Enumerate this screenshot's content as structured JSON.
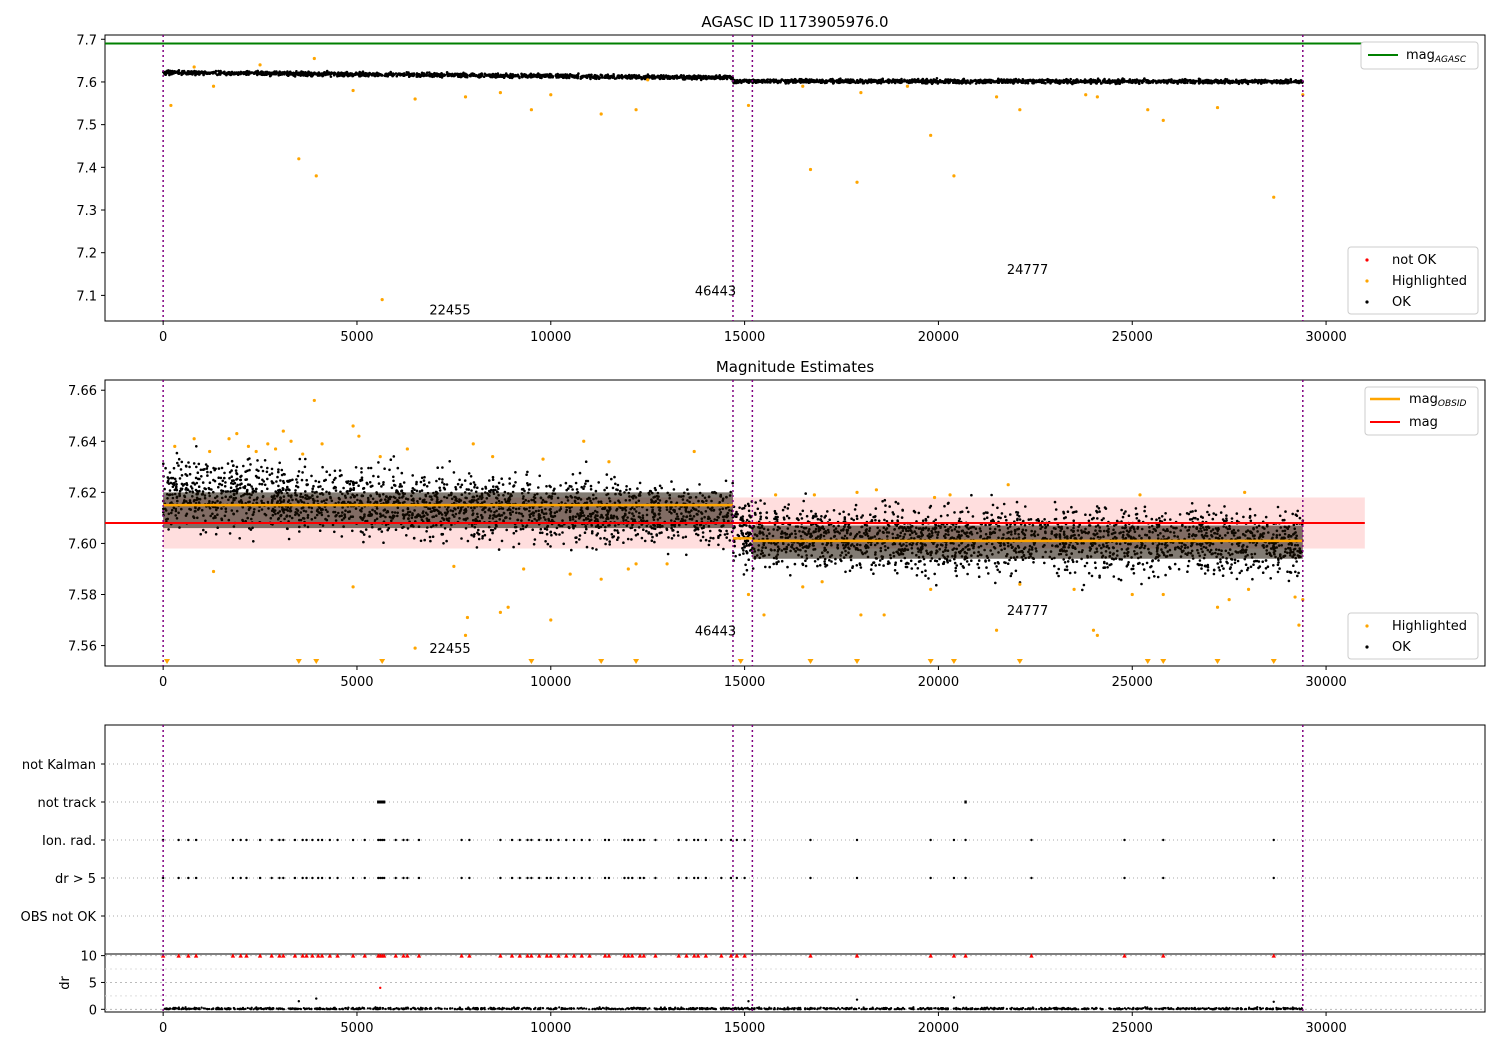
{
  "chart_data": [
    {
      "type": "scatter",
      "title": "AGASC ID 1173905976.0",
      "xlim": [
        -1500,
        34100
      ],
      "ylim": [
        7.04,
        7.71
      ],
      "xticks": [
        "0",
        "5000",
        "10000",
        "15000",
        "20000",
        "25000",
        "30000"
      ],
      "yticks": [
        "7.1",
        "7.2",
        "7.3",
        "7.4",
        "7.5",
        "7.6",
        "7.7"
      ],
      "mag_agasc": 7.69,
      "obsid_boundaries": [
        0,
        14700,
        15200,
        29400
      ],
      "obsid_labels": [
        {
          "text": "22455",
          "x": 7400,
          "y": 7.055
        },
        {
          "text": "46443",
          "x": 14250,
          "y": 7.1
        },
        {
          "text": "24777",
          "x": 22300,
          "y": 7.15
        }
      ],
      "series": [
        {
          "name": "OK",
          "color": "#000000",
          "bands": [
            {
              "x0": 0,
              "x1": 14700,
              "y0": 7.622,
              "y1": 7.61,
              "spread": 0.008
            },
            {
              "x0": 14700,
              "x1": 29400,
              "y0": 7.602,
              "y1": 7.601,
              "spread": 0.008
            }
          ]
        },
        {
          "name": "Highlighted",
          "color": "#ffa500",
          "points": [
            [
              3500,
              7.42
            ],
            [
              3950,
              7.38
            ],
            [
              5650,
              7.09
            ],
            [
              11300,
              7.525
            ],
            [
              12200,
              7.535
            ],
            [
              9500,
              7.535
            ],
            [
              6500,
              7.56
            ],
            [
              7800,
              7.565
            ],
            [
              10000,
              7.57
            ],
            [
              16700,
              7.395
            ],
            [
              17900,
              7.365
            ],
            [
              19800,
              7.475
            ],
            [
              20400,
              7.38
            ],
            [
              28650,
              7.33
            ],
            [
              25800,
              7.51
            ],
            [
              25400,
              7.535
            ],
            [
              27200,
              7.54
            ],
            [
              21500,
              7.565
            ],
            [
              22100,
              7.535
            ],
            [
              200,
              7.545
            ],
            [
              15100,
              7.545
            ],
            [
              3900,
              7.655
            ],
            [
              4900,
              7.58
            ],
            [
              1300,
              7.59
            ],
            [
              8700,
              7.575
            ],
            [
              18000,
              7.575
            ],
            [
              24100,
              7.565
            ],
            [
              29400,
              7.57
            ],
            [
              2500,
              7.64
            ],
            [
              800,
              7.635
            ],
            [
              12500,
              7.605
            ],
            [
              16500,
              7.59
            ],
            [
              19200,
              7.59
            ],
            [
              23800,
              7.57
            ]
          ]
        },
        {
          "name": "not OK",
          "color": "#ff0000",
          "points": []
        }
      ],
      "legend_top": [
        {
          "label": "mag",
          "sub": "AGASC",
          "color": "#008000"
        }
      ],
      "legend_bottom": [
        {
          "label": "not OK",
          "color": "#ff0000"
        },
        {
          "label": "Highlighted",
          "color": "#ffa500"
        },
        {
          "label": "OK",
          "color": "#000000"
        }
      ]
    },
    {
      "type": "scatter",
      "title": "Magnitude Estimates",
      "xlim": [
        -1500,
        34100
      ],
      "ylim": [
        7.552,
        7.664
      ],
      "xticks": [
        "0",
        "5000",
        "10000",
        "15000",
        "20000",
        "25000",
        "30000"
      ],
      "yticks": [
        "7.56",
        "7.58",
        "7.60",
        "7.62",
        "7.64",
        "7.66"
      ],
      "mag": 7.608,
      "mag_band": [
        7.598,
        7.618
      ],
      "mag_obsid_segments": [
        {
          "x0": 0,
          "x1": 14700,
          "y": 7.615
        },
        {
          "x0": 14700,
          "x1": 15200,
          "y": 7.602
        },
        {
          "x0": 15200,
          "x1": 29400,
          "y": 7.601
        }
      ],
      "obsid_boundaries": [
        0,
        14700,
        15200,
        29400
      ],
      "obsid_labels": [
        {
          "text": "22455",
          "x": 7400,
          "y": 7.557
        },
        {
          "text": "46443",
          "x": 14250,
          "y": 7.564
        },
        {
          "text": "24777",
          "x": 22300,
          "y": 7.572
        }
      ],
      "series": [
        {
          "name": "OK",
          "color": "#000000",
          "bands": [
            {
              "x0": 0,
              "x1": 14700,
              "y0": 7.62,
              "y1": 7.61,
              "spread": 0.022
            },
            {
              "x0": 14700,
              "x1": 29400,
              "y0": 7.603,
              "y1": 7.6,
              "spread": 0.022
            }
          ]
        },
        {
          "name": "Highlighted",
          "color": "#ffa500",
          "points": [
            [
              3900,
              7.656
            ],
            [
              4900,
              7.646
            ],
            [
              5050,
              7.642
            ],
            [
              3100,
              7.644
            ],
            [
              1700,
              7.641
            ],
            [
              800,
              7.641
            ],
            [
              2200,
              7.638
            ],
            [
              2700,
              7.639
            ],
            [
              3300,
              7.64
            ],
            [
              1900,
              7.643
            ],
            [
              4100,
              7.639
            ],
            [
              6300,
              7.637
            ],
            [
              8000,
              7.639
            ],
            [
              10850,
              7.64
            ],
            [
              13700,
              7.636
            ],
            [
              300,
              7.638
            ],
            [
              1200,
              7.636
            ],
            [
              2400,
              7.636
            ],
            [
              2900,
              7.637
            ],
            [
              3600,
              7.635
            ],
            [
              5600,
              7.634
            ],
            [
              8500,
              7.634
            ],
            [
              9800,
              7.633
            ],
            [
              11500,
              7.632
            ],
            [
              1300,
              7.589
            ],
            [
              4900,
              7.583
            ],
            [
              6500,
              7.559
            ],
            [
              7800,
              7.564
            ],
            [
              7850,
              7.571
            ],
            [
              8700,
              7.573
            ],
            [
              8900,
              7.575
            ],
            [
              10000,
              7.57
            ],
            [
              10500,
              7.588
            ],
            [
              11300,
              7.586
            ],
            [
              12000,
              7.59
            ],
            [
              12200,
              7.592
            ],
            [
              13000,
              7.592
            ],
            [
              7500,
              7.591
            ],
            [
              9300,
              7.59
            ],
            [
              15100,
              7.58
            ],
            [
              15500,
              7.572
            ],
            [
              16500,
              7.583
            ],
            [
              17000,
              7.585
            ],
            [
              18000,
              7.572
            ],
            [
              18600,
              7.572
            ],
            [
              19800,
              7.582
            ],
            [
              21500,
              7.566
            ],
            [
              22100,
              7.584
            ],
            [
              23500,
              7.582
            ],
            [
              24000,
              7.566
            ],
            [
              24100,
              7.564
            ],
            [
              25000,
              7.58
            ],
            [
              25800,
              7.58
            ],
            [
              27200,
              7.575
            ],
            [
              27500,
              7.578
            ],
            [
              28000,
              7.582
            ],
            [
              29300,
              7.568
            ],
            [
              29400,
              7.578
            ],
            [
              29200,
              7.579
            ],
            [
              16800,
              7.619
            ],
            [
              17900,
              7.62
            ],
            [
              18400,
              7.621
            ],
            [
              21800,
              7.623
            ],
            [
              27900,
              7.62
            ],
            [
              20300,
              7.619
            ],
            [
              19900,
              7.618
            ],
            [
              25200,
              7.619
            ],
            [
              15800,
              7.619
            ]
          ]
        }
      ],
      "triangle_markers_x": [
        100,
        3500,
        3950,
        5650,
        9500,
        11300,
        12200,
        14900,
        16700,
        17900,
        19800,
        20400,
        22100,
        25400,
        25800,
        27200,
        28650
      ],
      "legend_top": [
        {
          "label": "mag",
          "sub": "OBSID",
          "color": "#ffa500"
        },
        {
          "label": "mag",
          "sub": "",
          "color": "#ff0000"
        }
      ],
      "legend_bottom": [
        {
          "label": "Highlighted",
          "color": "#ffa500"
        },
        {
          "label": "OK",
          "color": "#000000"
        }
      ]
    },
    {
      "type": "scatter",
      "xlim": [
        -1500,
        34100
      ],
      "categories": [
        "not Kalman",
        "not track",
        "Ion. rad.",
        "dr > 5",
        "OBS not OK"
      ],
      "obsid_boundaries": [
        0,
        14700,
        15200,
        29400
      ],
      "not_track_x": [
        5550,
        5600,
        5650,
        5700,
        20700
      ],
      "flag_x": [
        0,
        400,
        650,
        850,
        1800,
        2000,
        2150,
        2500,
        2800,
        3000,
        3100,
        3400,
        3600,
        3700,
        3850,
        4000,
        4100,
        4300,
        4500,
        4900,
        5200,
        5550,
        5600,
        5650,
        5700,
        6000,
        6200,
        6300,
        6600,
        7700,
        7900,
        8700,
        9000,
        9200,
        9400,
        9500,
        9700,
        9900,
        10000,
        10200,
        10400,
        10600,
        10800,
        11000,
        11400,
        11500,
        11900,
        12000,
        12100,
        12300,
        12400,
        12700,
        13300,
        13500,
        13700,
        13800,
        14000,
        14400,
        14650,
        14800,
        15000,
        16700,
        17900,
        19800,
        20400,
        20700,
        22400,
        24800,
        25800,
        28650
      ]
    },
    {
      "type": "scatter",
      "xlim": [
        -1500,
        34100
      ],
      "ylim": [
        -0.5,
        10.3
      ],
      "ylabel": "dr",
      "yticks": [
        "0",
        "5",
        "10"
      ],
      "xticks": [
        "0",
        "5000",
        "10000",
        "15000",
        "20000",
        "25000",
        "30000"
      ],
      "obsid_boundaries": [
        0,
        14700,
        15200,
        29400
      ],
      "outliers": [
        [
          5600,
          4
        ],
        [
          3500,
          1.5
        ],
        [
          3950,
          2
        ],
        [
          15100,
          1.5
        ],
        [
          17900,
          1.8
        ],
        [
          20400,
          2.2
        ],
        [
          28650,
          1.4
        ]
      ]
    }
  ]
}
